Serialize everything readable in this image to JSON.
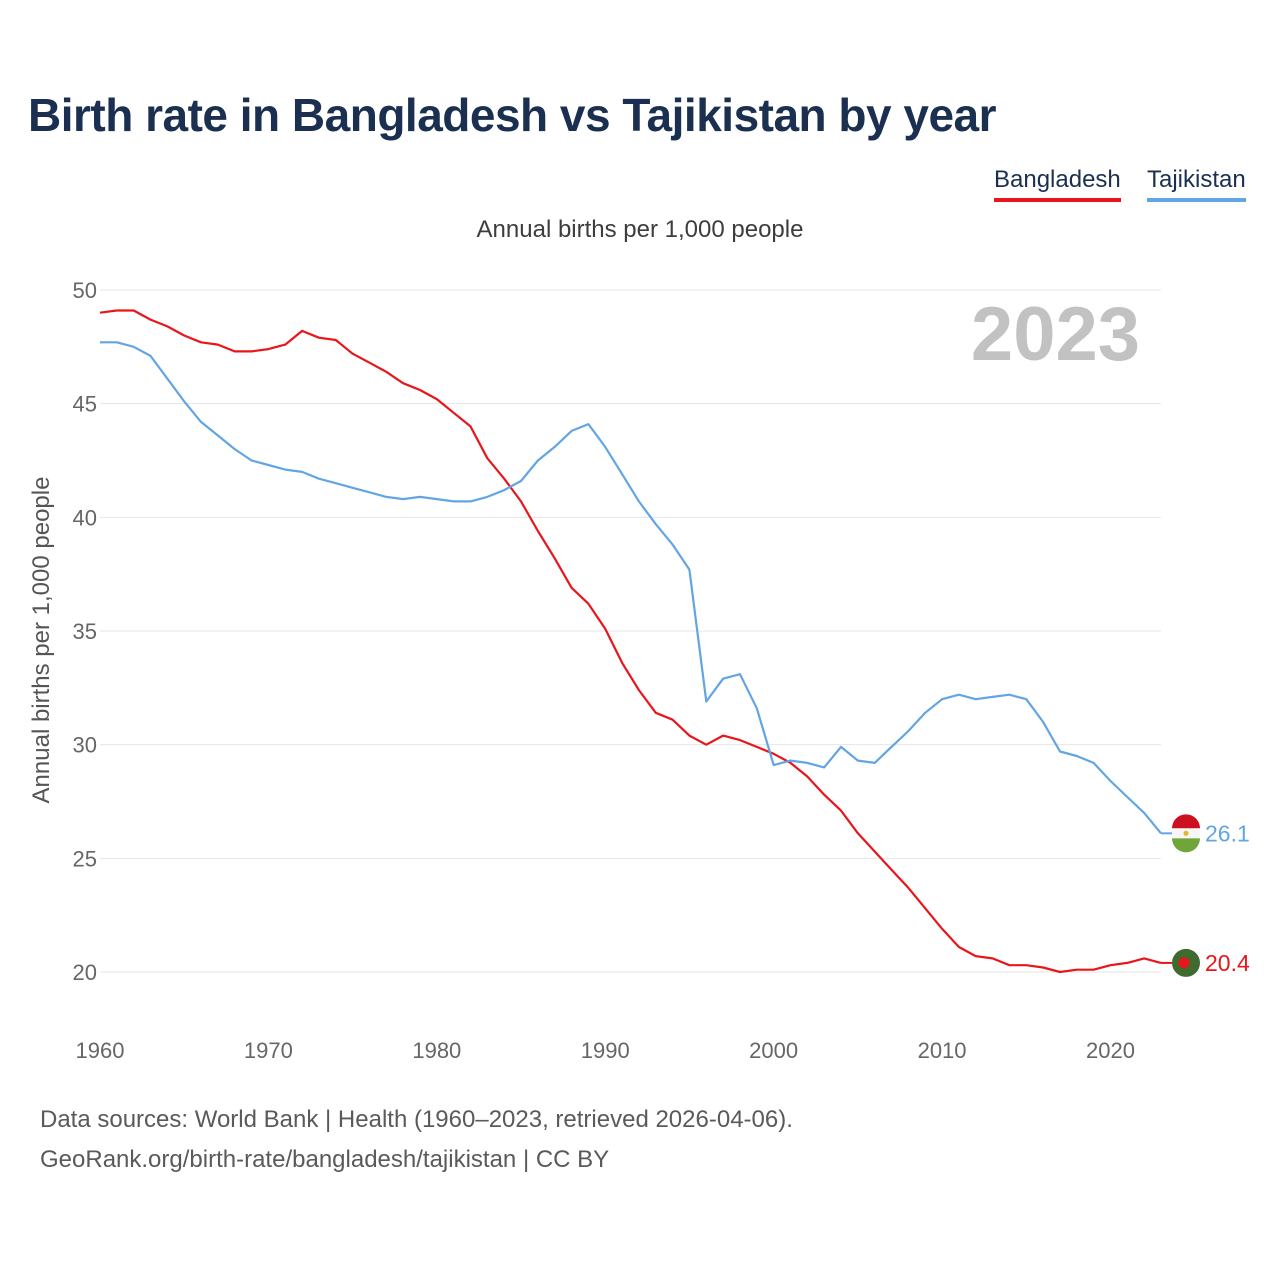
{
  "title": "Birth rate in Bangladesh vs Tajikistan by year",
  "subtitle": "Annual births per 1,000 people",
  "legend": [
    {
      "name": "Bangladesh",
      "color": "#e8161b"
    },
    {
      "name": "Tajikistan",
      "color": "#62a5e4"
    }
  ],
  "year_label": "2023",
  "footer": {
    "source": "Data sources: World Bank | Health (1960–2023, retrieved 2026-04-06).",
    "url": "GeoRank.org/birth-rate/bangladesh/tajikistan | CC BY"
  },
  "chart_data": {
    "type": "line",
    "title": "Birth rate in Bangladesh vs Tajikistan by year",
    "ylabel": "Annual births per 1,000 people",
    "xlabel": "",
    "xlim": [
      1960,
      2023
    ],
    "ylim": [
      18,
      50
    ],
    "x_ticks": [
      1960,
      1970,
      1980,
      1990,
      2000,
      2010,
      2020
    ],
    "y_ticks": [
      20,
      25,
      30,
      35,
      40,
      45,
      50
    ],
    "grid": true,
    "x": [
      1960,
      1961,
      1962,
      1963,
      1964,
      1965,
      1966,
      1967,
      1968,
      1969,
      1970,
      1971,
      1972,
      1973,
      1974,
      1975,
      1976,
      1977,
      1978,
      1979,
      1980,
      1981,
      1982,
      1983,
      1984,
      1985,
      1986,
      1987,
      1988,
      1989,
      1990,
      1991,
      1992,
      1993,
      1994,
      1995,
      1996,
      1997,
      1998,
      1999,
      2000,
      2001,
      2002,
      2003,
      2004,
      2005,
      2006,
      2007,
      2008,
      2009,
      2010,
      2011,
      2012,
      2013,
      2014,
      2015,
      2016,
      2017,
      2018,
      2019,
      2020,
      2021,
      2022,
      2023
    ],
    "series": [
      {
        "name": "Bangladesh",
        "color": "#e8161b",
        "end_label": "20.4",
        "values": [
          49.0,
          49.1,
          49.1,
          48.7,
          48.4,
          48.0,
          47.7,
          47.6,
          47.3,
          47.3,
          47.4,
          47.6,
          48.2,
          47.9,
          47.8,
          47.2,
          46.8,
          46.4,
          45.9,
          45.6,
          45.2,
          44.6,
          44.0,
          42.6,
          41.7,
          40.7,
          39.4,
          38.2,
          36.9,
          36.2,
          35.1,
          33.6,
          32.4,
          31.4,
          31.1,
          30.4,
          30.0,
          30.4,
          30.2,
          29.9,
          29.6,
          29.2,
          28.6,
          27.8,
          27.1,
          26.1,
          25.3,
          24.5,
          23.7,
          22.8,
          21.9,
          21.1,
          20.7,
          20.6,
          20.3,
          20.3,
          20.2,
          20.0,
          20.1,
          20.1,
          20.3,
          20.4,
          20.6,
          20.4
        ]
      },
      {
        "name": "Tajikistan",
        "color": "#62a5e4",
        "end_label": "26.1",
        "values": [
          47.7,
          47.7,
          47.5,
          47.1,
          46.1,
          45.1,
          44.2,
          43.6,
          43.0,
          42.5,
          42.3,
          42.1,
          42.0,
          41.7,
          41.5,
          41.3,
          41.1,
          40.9,
          40.8,
          40.9,
          40.8,
          40.7,
          40.7,
          40.9,
          41.2,
          41.6,
          42.5,
          43.1,
          43.8,
          44.1,
          43.1,
          41.9,
          40.7,
          39.7,
          38.8,
          37.7,
          31.9,
          32.9,
          33.1,
          31.6,
          29.1,
          29.3,
          29.2,
          29.0,
          29.9,
          29.3,
          29.2,
          29.9,
          30.6,
          31.4,
          32.0,
          32.2,
          32.0,
          32.1,
          32.2,
          32.0,
          31.0,
          29.7,
          29.5,
          29.2,
          28.4,
          27.7,
          27.0,
          26.1
        ]
      }
    ]
  }
}
